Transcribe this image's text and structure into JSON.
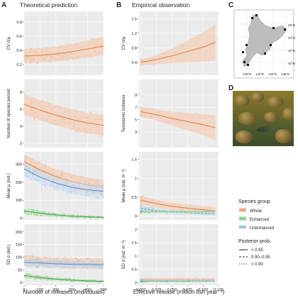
{
  "panels": {
    "A": {
      "letter": "A",
      "title": "Theoretical prediction",
      "xlabel": "Number of releases (individuals)"
    },
    "B": {
      "letter": "B",
      "title": "Empirical observation",
      "xlabel": "Effective release (million fish year⁻¹)"
    },
    "C": {
      "letter": "C"
    },
    "D": {
      "letter": "D"
    }
  },
  "map": {
    "lat_labels": [
      "45°N",
      "44°N",
      "43°N",
      "42°N"
    ],
    "lon_labels": [
      "140°E",
      "142°E",
      "144°E",
      "146°E"
    ]
  },
  "legend": {
    "group_title": "Species group",
    "groups": [
      {
        "label": "Whole",
        "color": "#f4a582"
      },
      {
        "label": "Enhanced",
        "color": "#7fc97f"
      },
      {
        "label": "Unenhanced",
        "color": "#80b1d3"
      }
    ],
    "prob_title": "Posterior prob.",
    "probs": [
      {
        "label": "> 0.95",
        "dash": "solid"
      },
      {
        "label": "0.90–0.95",
        "dash": "dashed"
      },
      {
        "label": "< 0.90",
        "dash": "dotted"
      }
    ]
  },
  "colors": {
    "whole": "#e07b39",
    "whole_band": "#f6c4a8",
    "enhanced": "#3aa04a",
    "unenhanced": "#4f8fd6",
    "panel_bg": "#ebebeb",
    "grid": "#ffffff"
  },
  "chart_data": [
    {
      "id": "A1",
      "type": "scatter",
      "ylabel": "CV σ/μ",
      "xlim": [
        0,
        500
      ],
      "ylim": [
        0.05,
        0.95
      ],
      "yticks": [
        0.2,
        0.4,
        0.6,
        0.8
      ],
      "xticks": [
        0,
        100,
        200,
        300,
        400,
        500
      ],
      "series": [
        {
          "group": "whole",
          "x": [
            0,
            100,
            200,
            300,
            400,
            500
          ],
          "y": [
            0.32,
            0.33,
            0.35,
            0.38,
            0.42,
            0.46
          ],
          "band": [
            0.1,
            0.1,
            0.1,
            0.11,
            0.12,
            0.13
          ]
        }
      ]
    },
    {
      "id": "A2",
      "type": "scatter",
      "ylabel": "Number of species persist",
      "xlim": [
        0,
        500
      ],
      "ylim": [
        1.5,
        9.5
      ],
      "yticks": [
        2,
        4,
        6,
        8
      ],
      "xticks": [
        0,
        100,
        200,
        300,
        400,
        500
      ],
      "series": [
        {
          "group": "whole",
          "x": [
            0,
            100,
            200,
            300,
            400,
            500
          ],
          "y": [
            6.6,
            5.9,
            5.3,
            4.8,
            4.4,
            4.1
          ],
          "band": [
            1.2,
            1.2,
            1.2,
            1.2,
            1.2,
            1.2
          ]
        }
      ]
    },
    {
      "id": "A3",
      "type": "scatter",
      "ylabel": "Mean μ (ind.)",
      "xlim": [
        0,
        500
      ],
      "ylim": [
        -10,
        370
      ],
      "yticks": [
        0,
        100,
        200,
        300
      ],
      "xticks": [
        0,
        100,
        200,
        300,
        400,
        500
      ],
      "series": [
        {
          "group": "whole",
          "x": [
            0,
            100,
            200,
            300,
            400,
            500
          ],
          "y": [
            315,
            270,
            232,
            205,
            185,
            172
          ],
          "band": [
            40,
            40,
            40,
            40,
            40,
            40
          ]
        },
        {
          "group": "unenhanced",
          "x": [
            0,
            100,
            200,
            300,
            400,
            500
          ],
          "y": [
            275,
            228,
            196,
            172,
            158,
            150
          ],
          "band": [
            35,
            35,
            35,
            35,
            35,
            35
          ]
        },
        {
          "group": "enhanced",
          "x": [
            0,
            100,
            200,
            300,
            400,
            500
          ],
          "y": [
            40,
            28,
            18,
            11,
            7,
            5
          ],
          "band": [
            15,
            12,
            9,
            7,
            5,
            4
          ]
        }
      ]
    },
    {
      "id": "A4",
      "type": "scatter",
      "ylabel": "SD σ (ind.)",
      "xlim": [
        0,
        500
      ],
      "ylim": [
        -10,
        230
      ],
      "yticks": [
        0,
        50,
        100,
        150,
        200
      ],
      "xticks": [
        0,
        100,
        200,
        300,
        400,
        500
      ],
      "series": [
        {
          "group": "whole",
          "x": [
            0,
            100,
            200,
            300,
            400,
            500
          ],
          "y": [
            88,
            82,
            79,
            76,
            75,
            74
          ],
          "band": [
            20,
            20,
            20,
            20,
            20,
            20
          ]
        },
        {
          "group": "unenhanced",
          "x": [
            0,
            100,
            200,
            300,
            400,
            500
          ],
          "y": [
            80,
            77,
            74,
            72,
            71,
            70
          ],
          "band": [
            15,
            15,
            15,
            15,
            15,
            15
          ]
        },
        {
          "group": "enhanced",
          "x": [
            0,
            100,
            200,
            300,
            400,
            500
          ],
          "y": [
            28,
            20,
            14,
            10,
            7,
            5
          ],
          "band": [
            8,
            7,
            6,
            5,
            4,
            3
          ]
        }
      ]
    },
    {
      "id": "B1",
      "type": "scatter",
      "ylabel": "CV σ/μ",
      "xlim": [
        -0.003,
        0.125
      ],
      "ylim": [
        0.05,
        1.8
      ],
      "yticks": [
        0.4,
        0.8,
        1.2,
        1.6
      ],
      "xticks": [
        0.0,
        0.025,
        0.05,
        0.075,
        0.1,
        0.125
      ],
      "series": [
        {
          "group": "whole",
          "x": [
            0.0,
            0.025,
            0.05,
            0.075,
            0.1,
            0.12
          ],
          "y": [
            0.4,
            0.48,
            0.58,
            0.7,
            0.82,
            0.95
          ],
          "band": [
            0.08,
            0.12,
            0.2,
            0.3,
            0.4,
            0.5
          ]
        }
      ]
    },
    {
      "id": "B2",
      "type": "scatter",
      "ylabel": "Taxonomic richness",
      "xlim": [
        -0.003,
        0.125
      ],
      "ylim": [
        0.5,
        11.5
      ],
      "yticks": [
        3,
        5,
        7,
        9
      ],
      "xticks": [
        0.0,
        0.025,
        0.05,
        0.075,
        0.1,
        0.125
      ],
      "series": [
        {
          "group": "whole",
          "x": [
            0.0,
            0.025,
            0.05,
            0.075,
            0.1,
            0.12
          ],
          "y": [
            6.3,
            5.8,
            5.2,
            4.7,
            4.2,
            3.7
          ],
          "band": [
            0.8,
            0.9,
            1.1,
            1.4,
            1.7,
            2.0
          ]
        }
      ]
    },
    {
      "id": "B3",
      "type": "scatter",
      "ylabel": "Mean μ (ind. m⁻²)",
      "xlim": [
        -0.003,
        0.125
      ],
      "ylim": [
        -0.1,
        1.7
      ],
      "yticks": [
        0.0,
        0.5,
        1.0,
        1.5
      ],
      "xticks": [
        0.0,
        0.025,
        0.05,
        0.075,
        0.1,
        0.125
      ],
      "series": [
        {
          "group": "whole",
          "x": [
            0.0,
            0.025,
            0.05,
            0.075,
            0.1,
            0.12
          ],
          "y": [
            0.42,
            0.33,
            0.26,
            0.21,
            0.17,
            0.14
          ],
          "band": [
            0.12,
            0.1,
            0.1,
            0.1,
            0.1,
            0.1
          ]
        },
        {
          "group": "unenhanced",
          "x": [
            0.0,
            0.025,
            0.05,
            0.075,
            0.1,
            0.12
          ],
          "y": [
            0.2,
            0.15,
            0.11,
            0.09,
            0.07,
            0.06
          ],
          "band": [
            0.06,
            0.05,
            0.05,
            0.05,
            0.05,
            0.05
          ],
          "dash": "dashed"
        },
        {
          "group": "enhanced",
          "x": [
            0.0,
            0.025,
            0.05,
            0.075,
            0.1,
            0.12
          ],
          "y": [
            0.12,
            0.12,
            0.12,
            0.12,
            0.12,
            0.12
          ],
          "band": [
            0.03,
            0.03,
            0.03,
            0.03,
            0.03,
            0.03
          ],
          "dash": "dotted"
        }
      ]
    },
    {
      "id": "B4",
      "type": "scatter",
      "ylabel": "SD σ (ind. m⁻²)",
      "xlim": [
        -0.003,
        0.125
      ],
      "ylim": [
        -0.1,
        2.2
      ],
      "yticks": [
        0.0,
        0.5,
        1.0,
        1.5,
        2.0
      ],
      "xticks": [
        0.0,
        0.025,
        0.05,
        0.075,
        0.1,
        0.125
      ],
      "series": [
        {
          "group": "whole",
          "x": [
            0.0,
            0.025,
            0.05,
            0.075,
            0.1,
            0.12
          ],
          "y": [
            0.12,
            0.12,
            0.12,
            0.12,
            0.12,
            0.12
          ],
          "band": [
            0.04,
            0.04,
            0.04,
            0.04,
            0.04,
            0.04
          ],
          "dash": "dotted"
        },
        {
          "group": "unenhanced",
          "x": [
            0.0,
            0.025,
            0.05,
            0.075,
            0.1,
            0.12
          ],
          "y": [
            0.07,
            0.07,
            0.07,
            0.07,
            0.07,
            0.07
          ],
          "band": [
            0.03,
            0.03,
            0.03,
            0.03,
            0.03,
            0.03
          ],
          "dash": "dotted"
        },
        {
          "group": "enhanced",
          "x": [
            0.0,
            0.025,
            0.05,
            0.075,
            0.1,
            0.12
          ],
          "y": [
            0.04,
            0.04,
            0.04,
            0.04,
            0.04,
            0.04
          ],
          "band": [
            0.02,
            0.02,
            0.02,
            0.02,
            0.02,
            0.02
          ],
          "dash": "dotted"
        }
      ]
    }
  ]
}
